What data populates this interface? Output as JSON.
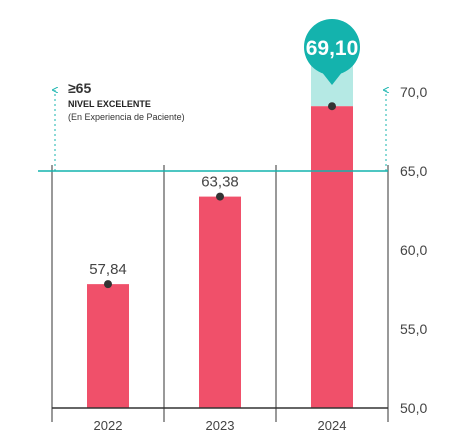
{
  "chart_data": {
    "type": "bar",
    "categories": [
      "2022",
      "2023",
      "2024"
    ],
    "values": [
      57.84,
      63.38,
      69.1
    ],
    "value_labels": [
      "57,84",
      "63,38",
      "69,10"
    ],
    "ylim": [
      50,
      70
    ],
    "y_ticks": [
      50,
      55,
      60,
      65,
      70
    ],
    "y_tick_labels": [
      "50,0",
      "55,0",
      "60,0",
      "65,0",
      "70,0"
    ],
    "y_axis_side": "right",
    "grid": false,
    "threshold": {
      "value": 65,
      "label_value": "≥65",
      "label_title": "NIVEL EXCELENTE",
      "label_subtitle": "(En Experiencia de Paciente)"
    },
    "highlight_index": 2,
    "colors": {
      "bar": "#f0506a",
      "threshold": "#14b3ad",
      "highlight_bg": "#b5e9e4",
      "bubble": "#14b3ad",
      "marker": "#333333",
      "axis": "#333333"
    }
  }
}
